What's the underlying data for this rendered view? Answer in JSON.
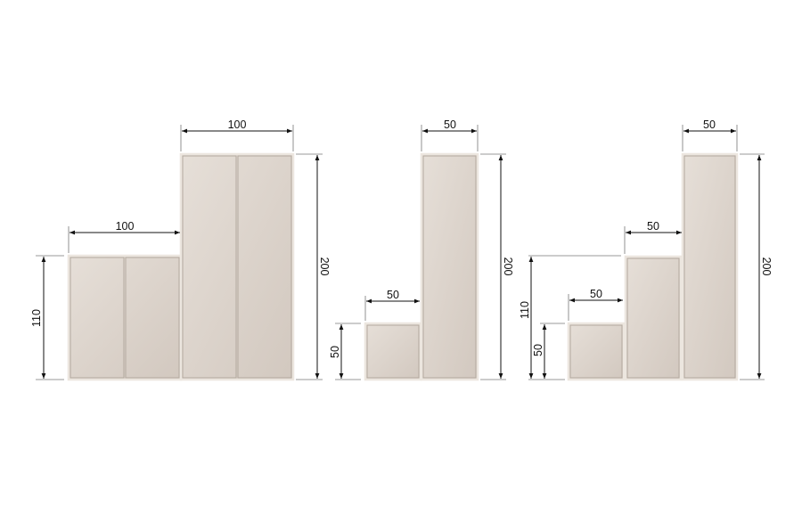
{
  "colors": {
    "cabinet": "#d9d0c7",
    "edge": "#ece6df",
    "door_line": "#b3a99f",
    "dimension": "#111111"
  },
  "config1": {
    "top_width": "100",
    "bottom_width": "100",
    "left_height": "110",
    "right_height": "200"
  },
  "config2": {
    "top_width": "50",
    "bottom_width": "50",
    "left_height": "50",
    "right_height": "200"
  },
  "config3": {
    "top_width": "50",
    "mid_width": "50",
    "bottom_width": "50",
    "left_height_outer": "110",
    "left_height_inner": "50",
    "right_height": "200"
  }
}
